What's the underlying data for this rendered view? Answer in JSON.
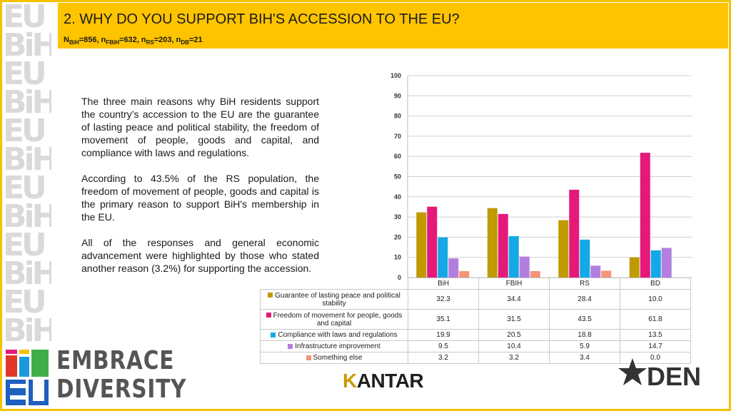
{
  "header": {
    "title": "2. WHY DO YOU SUPPORT BIH'S ACCESSION TO THE EU?",
    "sample": {
      "n1": "N",
      "s1": "BiH",
      "v1": "=856, n",
      "s2": "FBiH",
      "v2": "=632, n",
      "s3": "RS",
      "v3": "=203, n",
      "s4": "DB",
      "v4": "=21"
    }
  },
  "text": {
    "p1": "The three main reasons why BiH residents support the country’s accession to the EU are the guarantee of lasting peace and political stability, the freedom of movement of people, goods and capital, and compliance with laws and regulations.",
    "p2": "According to 43.5% of the RS population, the freedom of movement of people, goods and capital is the primary reason to support BiH's membership in the EU.",
    "p3": "All of the responses and general economic advancement were highlighted by those who stated another reason (3.2%) for supporting the accession."
  },
  "chart_data": {
    "type": "bar",
    "categories": [
      "BiH",
      "FBIH",
      "RS",
      "BD"
    ],
    "ylim": [
      0,
      100
    ],
    "yticks": [
      0,
      10,
      20,
      30,
      40,
      50,
      60,
      70,
      80,
      90,
      100
    ],
    "grid": true,
    "legend": "data-table",
    "series": [
      {
        "name": "Guarantee of lasting peace and political stability",
        "color": "#bf9a00",
        "values": [
          32.3,
          34.4,
          28.4,
          10.0
        ],
        "labels": [
          "32.3",
          "34.4",
          "28.4",
          "10.0"
        ]
      },
      {
        "name": "Freedom of movement for people, goods and capital",
        "color": "#e5197a",
        "values": [
          35.1,
          31.5,
          43.5,
          61.8
        ],
        "labels": [
          "35.1",
          "31.5",
          "43.5",
          "61.8"
        ]
      },
      {
        "name": "Compliance with laws and regulations",
        "color": "#14a9e6",
        "values": [
          19.9,
          20.5,
          18.8,
          13.5
        ],
        "labels": [
          "19.9",
          "20.5",
          "18.8",
          "13.5"
        ]
      },
      {
        "name": "Infrastructure improvement",
        "color": "#b27fe0",
        "values": [
          9.5,
          10.4,
          5.9,
          14.7
        ],
        "labels": [
          "9.5",
          "10.4",
          "5.9",
          "14.7"
        ]
      },
      {
        "name": "Something else",
        "color": "#f59379",
        "values": [
          3.2,
          3.2,
          3.4,
          0.0
        ],
        "labels": [
          "3.2",
          "3.2",
          "3.4",
          "0.0"
        ]
      }
    ]
  },
  "logos": {
    "bih": [
      "BiH",
      "EU"
    ],
    "embrace": [
      "EMBRACE",
      "DIVERSITY"
    ],
    "kantar_k": "K",
    "kantar_rest": "ANTAR",
    "den": "DEN",
    "colors": {
      "accent": "#ffc400",
      "frame": "#f4c200",
      "strip": "#d9d9d9"
    }
  }
}
